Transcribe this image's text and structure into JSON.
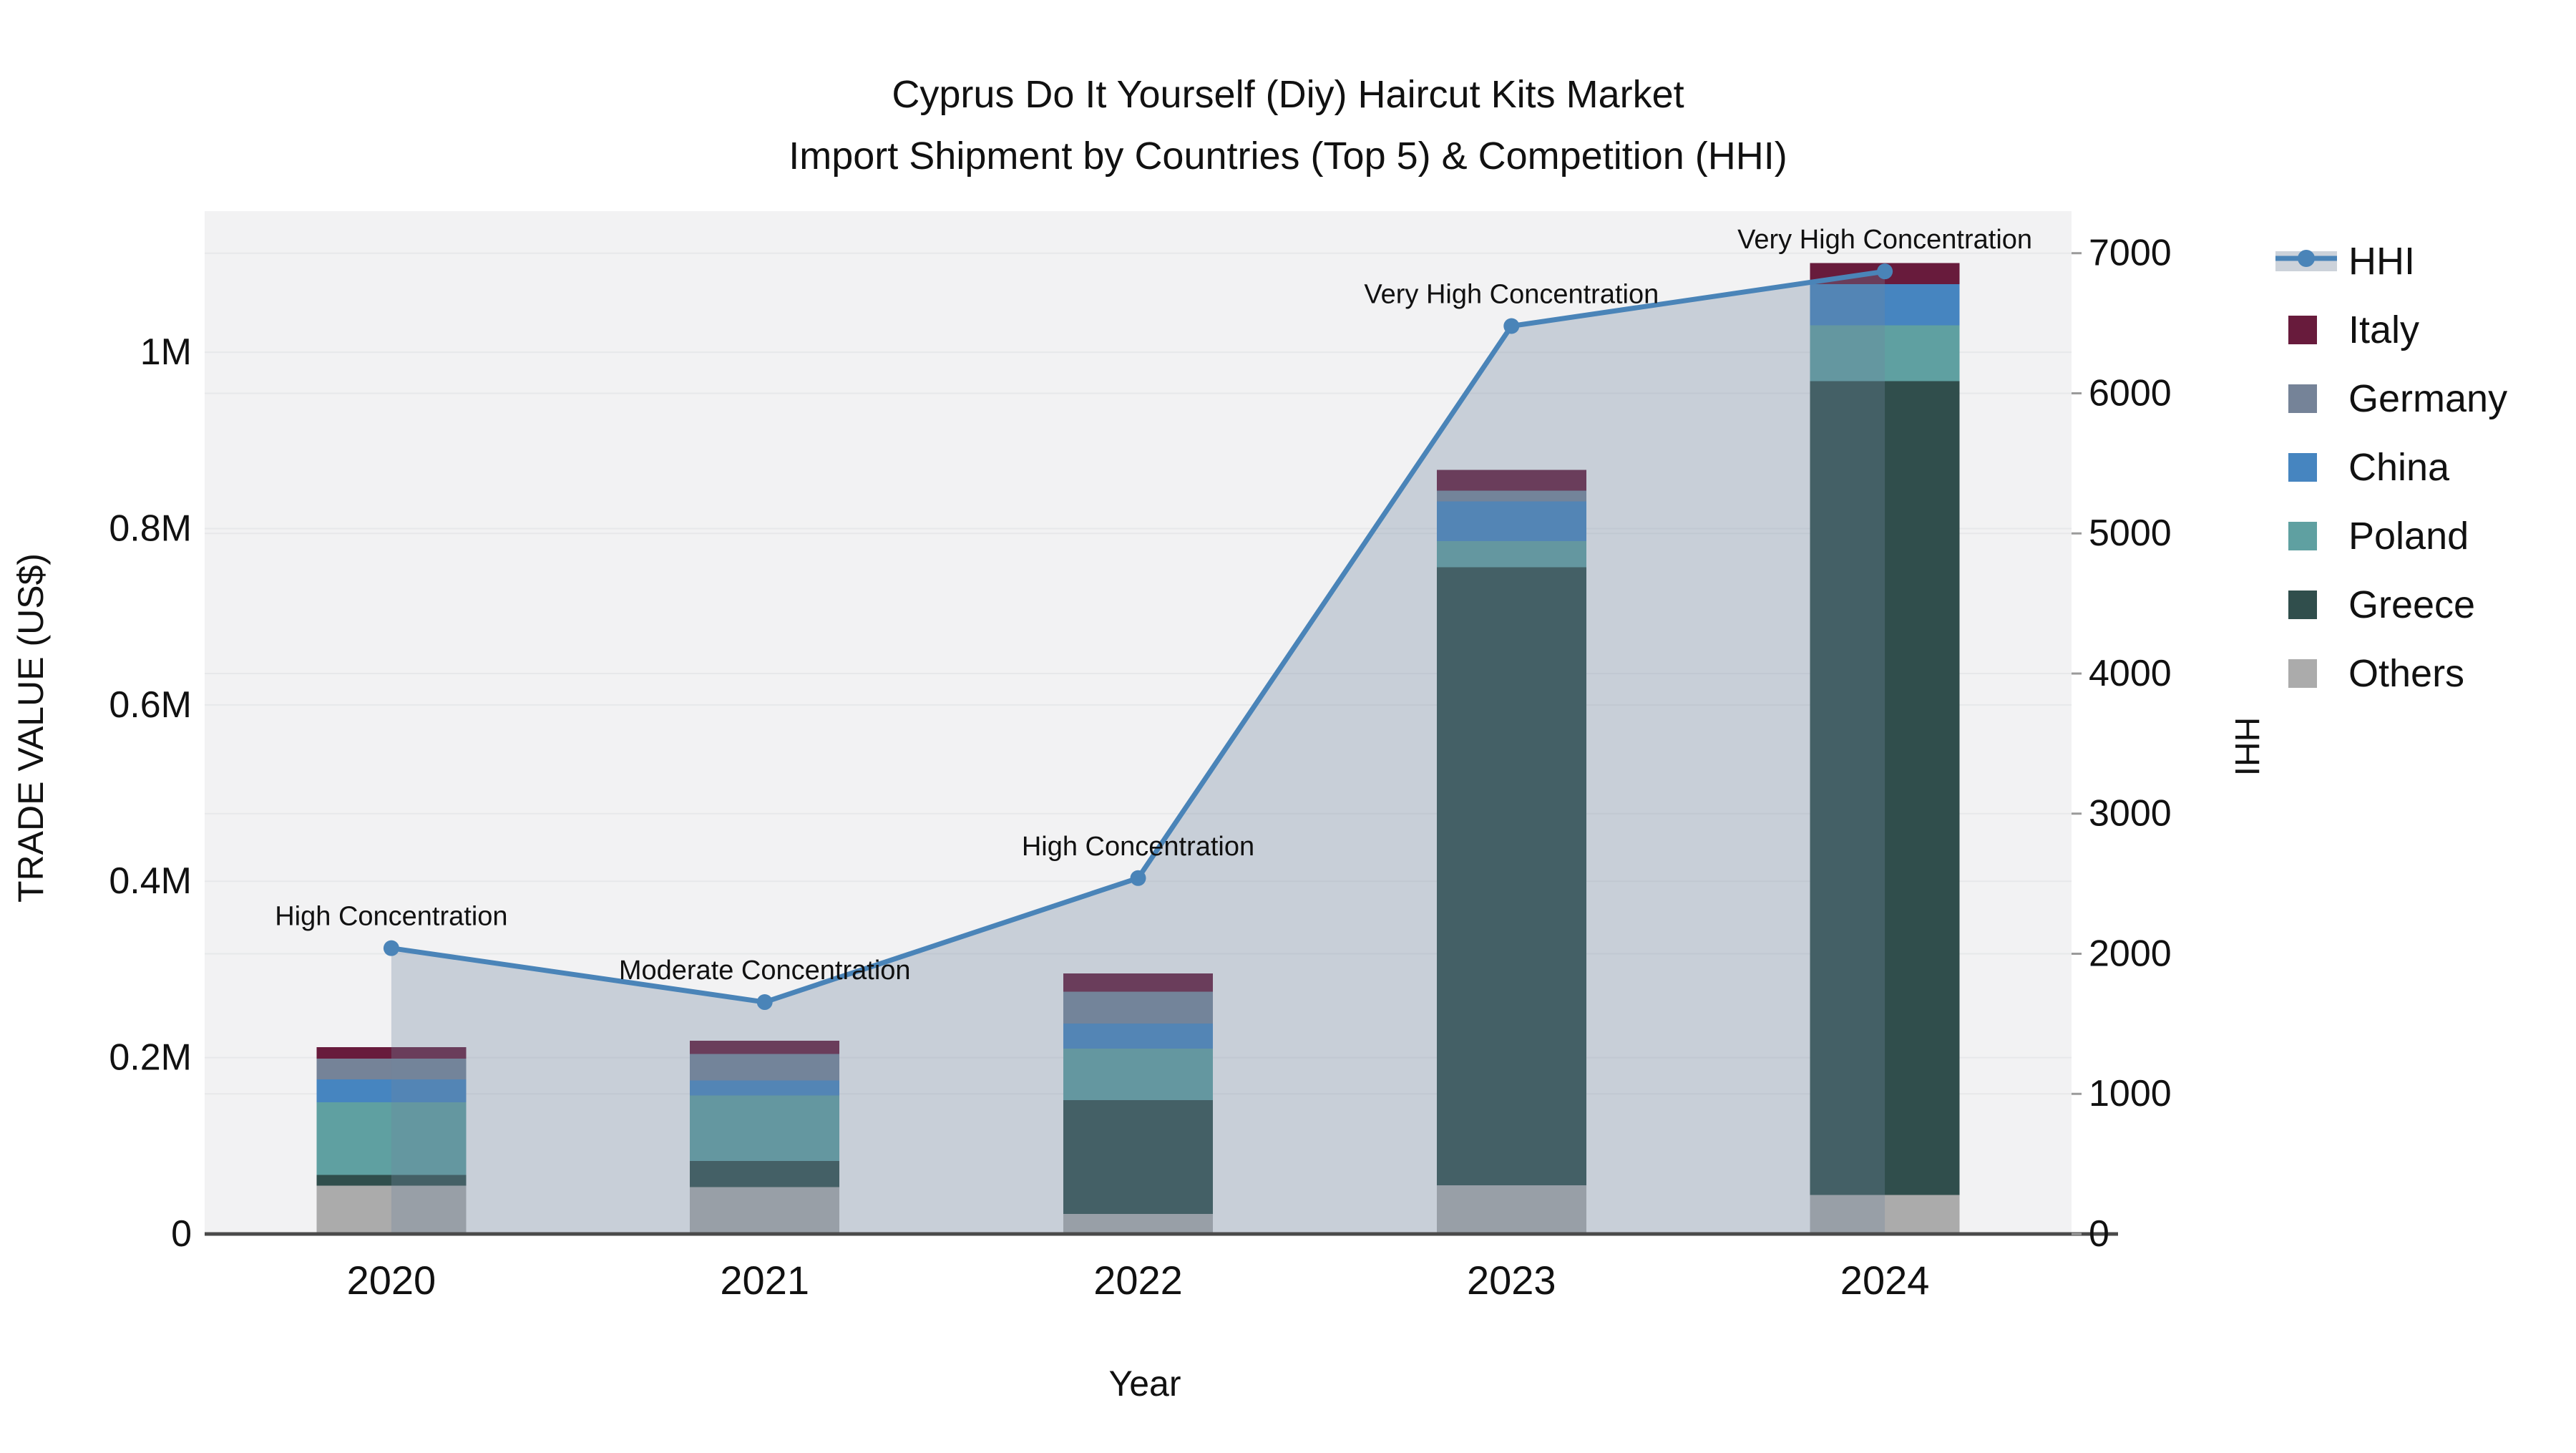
{
  "title_line1": "Cyprus Do It Yourself (Diy) Haircut Kits Market",
  "title_line2": "Import Shipment by Countries (Top 5) & Competition (HHI)",
  "chart_data": {
    "type": "combo: stacked-bar + line (dual axis)",
    "categories": [
      "2020",
      "2021",
      "2022",
      "2023",
      "2024"
    ],
    "series": [
      {
        "name": "Others",
        "color": "#ababab",
        "values": [
          54600,
          53000,
          22700,
          55200,
          44400
        ]
      },
      {
        "name": "Greece",
        "color": "#304e4c",
        "values": [
          12200,
          29800,
          129300,
          700900,
          922700
        ]
      },
      {
        "name": "Poland",
        "color": "#5fa0a1",
        "values": [
          82500,
          74100,
          58200,
          29500,
          63500
        ]
      },
      {
        "name": "China",
        "color": "#4685c0",
        "values": [
          26200,
          17400,
          28400,
          45400,
          46500
        ]
      },
      {
        "name": "Germany",
        "color": "#758398",
        "values": [
          23500,
          30000,
          36000,
          11900,
          0
        ]
      },
      {
        "name": "Italy",
        "color": "#681b3c",
        "values": [
          13000,
          14900,
          20900,
          23800,
          24100
        ]
      }
    ],
    "line_series": {
      "name": "HHI",
      "color": "#4a84b8",
      "area_fill": "rgba(113,133,158,0.32)",
      "values": [
        2040,
        1655,
        2540,
        6480,
        6870
      ],
      "annotations": [
        "High Concentration",
        "Moderate Concentration",
        "High Concentration",
        "Very High Concentration",
        "Very High Concentration"
      ]
    },
    "left_axis": {
      "label": "TRADE VALUE (US$)",
      "tick_values": [
        0,
        200000,
        400000,
        600000,
        800000,
        1000000
      ],
      "tick_labels": [
        "0",
        "0.2M",
        "0.4M",
        "0.6M",
        "0.8M",
        "1M"
      ],
      "max": 1160000
    },
    "right_axis": {
      "label": "HHI",
      "tick_values": [
        0,
        1000,
        2000,
        3000,
        4000,
        5000,
        6000,
        7000
      ],
      "tick_labels": [
        "0",
        "1000",
        "2000",
        "3000",
        "4000",
        "5000",
        "6000",
        "7000"
      ],
      "max": 7300
    },
    "x_axis": {
      "label": "Year"
    },
    "legend": [
      {
        "label": "HHI",
        "type": "line"
      },
      {
        "label": "Italy",
        "type": "square",
        "color": "#681b3c"
      },
      {
        "label": "Germany",
        "type": "square",
        "color": "#758398"
      },
      {
        "label": "China",
        "type": "square",
        "color": "#4685c0"
      },
      {
        "label": "Poland",
        "type": "square",
        "color": "#5fa0a1"
      },
      {
        "label": "Greece",
        "type": "square",
        "color": "#304e4c"
      },
      {
        "label": "Others",
        "type": "square",
        "color": "#ababab"
      }
    ],
    "plot_background": "#f2f2f3",
    "gridline_color": "#e7e8ea",
    "axisline_color": "#4a4a4a"
  }
}
